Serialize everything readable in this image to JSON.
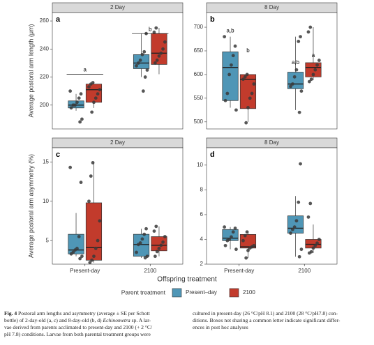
{
  "legend": {
    "title": "Parent treatment",
    "series": [
      {
        "name": "Present–day",
        "color": "#4f96b6"
      },
      {
        "name": "2100",
        "color": "#c23b2c"
      }
    ]
  },
  "xlabel": "Offspring treatment",
  "chart_data": [
    {
      "type": "box",
      "panel_label": "a",
      "strip": "2 Day",
      "ylabel": "Average postoral arm length (μm)",
      "ylim": [
        183,
        266
      ],
      "yticks": [
        200,
        220,
        240,
        260
      ],
      "series": [
        {
          "boxes": [
            {
              "whisker_low": 196,
              "q1": 198,
              "median": 200,
              "q3": 203,
              "whisker_high": 208,
              "points": [
                210,
                208,
                205,
                202,
                200,
                200,
                198,
                190,
                188
              ]
            },
            {
              "whisker_low": 220,
              "q1": 226,
              "median": 230,
              "q3": 236,
              "whisker_high": 251,
              "points": [
                251,
                238,
                236,
                232,
                230,
                228,
                225,
                220,
                210
              ]
            }
          ]
        },
        {
          "boxes": [
            {
              "whisker_low": 198,
              "q1": 202,
              "median": 211,
              "q3": 215,
              "whisker_high": 217,
              "points": [
                216,
                215,
                213,
                211,
                208,
                205,
                202,
                195
              ]
            },
            {
              "whisker_low": 222,
              "q1": 229,
              "median": 237,
              "q3": 251,
              "whisker_high": 255,
              "points": [
                255,
                252,
                245,
                240,
                237,
                235,
                232,
                230
              ]
            }
          ]
        }
      ],
      "annotations": [
        {
          "text": "a",
          "group": 0,
          "y": 222,
          "bracket": true
        },
        {
          "text": "b",
          "group": 1,
          "y": 251,
          "bracket": true
        }
      ]
    },
    {
      "type": "box",
      "panel_label": "b",
      "strip": "8 Day",
      "ylim": [
        485,
        731
      ],
      "yticks": [
        500,
        550,
        600,
        650,
        700
      ],
      "series": [
        {
          "boxes": [
            {
              "whisker_low": 530,
              "q1": 545,
              "median": 615,
              "q3": 648,
              "whisker_high": 680,
              "points": [
                680,
                660,
                640,
                620,
                600,
                560,
                545,
                525
              ]
            },
            {
              "whisker_low": 525,
              "q1": 570,
              "median": 580,
              "q3": 605,
              "whisker_high": 680,
              "points": [
                680,
                670,
                610,
                595,
                580,
                575,
                565,
                520
              ]
            }
          ]
        },
        {
          "boxes": [
            {
              "whisker_low": 500,
              "q1": 528,
              "median": 590,
              "q3": 600,
              "whisker_high": 603,
              "points": [
                600,
                595,
                590,
                580,
                560,
                550,
                530,
                498
              ]
            },
            {
              "whisker_low": 588,
              "q1": 595,
              "median": 615,
              "q3": 625,
              "whisker_high": 700,
              "points": [
                700,
                690,
                630,
                620,
                610,
                600,
                590,
                585
              ]
            }
          ]
        }
      ],
      "annotations": [
        {
          "text": "a,b",
          "group": 0,
          "series": 0,
          "y": 692
        },
        {
          "text": "b",
          "group": 0,
          "series": 1,
          "y": 650
        },
        {
          "text": "a,b",
          "group": 1,
          "series": 0,
          "y": 625
        },
        {
          "text": "a",
          "group": 1,
          "series": 1,
          "y": 640
        }
      ]
    },
    {
      "type": "box",
      "panel_label": "c",
      "strip": "2 Day",
      "ylabel": "Average postoral arm asymmetry (%)",
      "ylim": [
        2,
        16.8
      ],
      "yticks": [
        5,
        10,
        15
      ],
      "categories": [
        "Present-day",
        "2100"
      ],
      "series": [
        {
          "boxes": [
            {
              "whisker_low": 3,
              "q1": 3.3,
              "median": 3.8,
              "q3": 5.8,
              "whisker_high": 8.5,
              "points": [
                14.3,
                12.4,
                5.5,
                4,
                3.8,
                3.5,
                3.3,
                3.0,
                2.7
              ]
            },
            {
              "whisker_low": 2.8,
              "q1": 3,
              "median": 4.5,
              "q3": 5.8,
              "whisker_high": 6.5,
              "points": [
                6.5,
                5.8,
                5.2,
                4.7,
                4.5,
                3.5,
                3.0,
                2.8
              ]
            }
          ]
        },
        {
          "boxes": [
            {
              "whisker_low": 2.2,
              "q1": 2.5,
              "median": 4.1,
              "q3": 9.8,
              "whisker_high": 15,
              "points": [
                14.9,
                13.2,
                10,
                7.5,
                5,
                4,
                3,
                2.5,
                2.2
              ]
            },
            {
              "whisker_low": 3,
              "q1": 3.7,
              "median": 4.4,
              "q3": 5.5,
              "whisker_high": 6.8,
              "points": [
                6.8,
                6.2,
                5.5,
                4.8,
                4.4,
                4.0,
                3.6,
                3.0
              ]
            }
          ]
        }
      ]
    },
    {
      "type": "box",
      "panel_label": "d",
      "strip": "8 Day",
      "ylim": [
        2,
        11.4
      ],
      "yticks": [
        2,
        4,
        6,
        8,
        10
      ],
      "categories": [
        "Present-day",
        "2100"
      ],
      "series": [
        {
          "boxes": [
            {
              "whisker_low": 3.2,
              "q1": 3.9,
              "median": 4.1,
              "q3": 4.8,
              "whisker_high": 5.0,
              "points": [
                5.0,
                4.9,
                4.6,
                4.2,
                4.0,
                3.9,
                3.5,
                3.2
              ]
            },
            {
              "whisker_low": 2.6,
              "q1": 4.5,
              "median": 4.9,
              "q3": 5.9,
              "whisker_high": 7.5,
              "points": [
                10.1,
                7.0,
                5.5,
                5,
                4.8,
                4.5,
                3.2,
                2.6
              ]
            }
          ]
        },
        {
          "boxes": [
            {
              "whisker_low": 2.5,
              "q1": 3.3,
              "median": 3.4,
              "q3": 4.4,
              "whisker_high": 4.6,
              "points": [
                4.6,
                4.3,
                3.9,
                3.5,
                3.4,
                3.3,
                3.1,
                2.5
              ]
            },
            {
              "whisker_low": 2.9,
              "q1": 3.3,
              "median": 3.6,
              "q3": 4.0,
              "whisker_high": 5.2,
              "points": [
                6.9,
                5.8,
                4.0,
                3.7,
                3.5,
                3.3,
                3.0,
                2.9
              ]
            }
          ]
        }
      ]
    }
  ],
  "caption": {
    "label": "Fig. 4",
    "left": [
      " Postoral arm lengths and asymmetry (average ± SE per Schott",
      {
        "before": "bottle) of 2-day-old (a, c) and 8-day-old (b, d) ",
        "italic": "Echinometra",
        "after": " sp. A lar-"
      },
      "vae derived from parents acclimated to present-day and 2100 (+ 2 °C/",
      "pH 7.8) conditions. Larvae from both parental treatment groups were"
    ],
    "right": [
      "cultured in present-day (26 °C/pH 8.1) and 2100 (28 °C/pH7.8) con-",
      "ditions. Boxes not sharing a common letter indicate significant differ-",
      "ences in post hoc analyses"
    ]
  }
}
